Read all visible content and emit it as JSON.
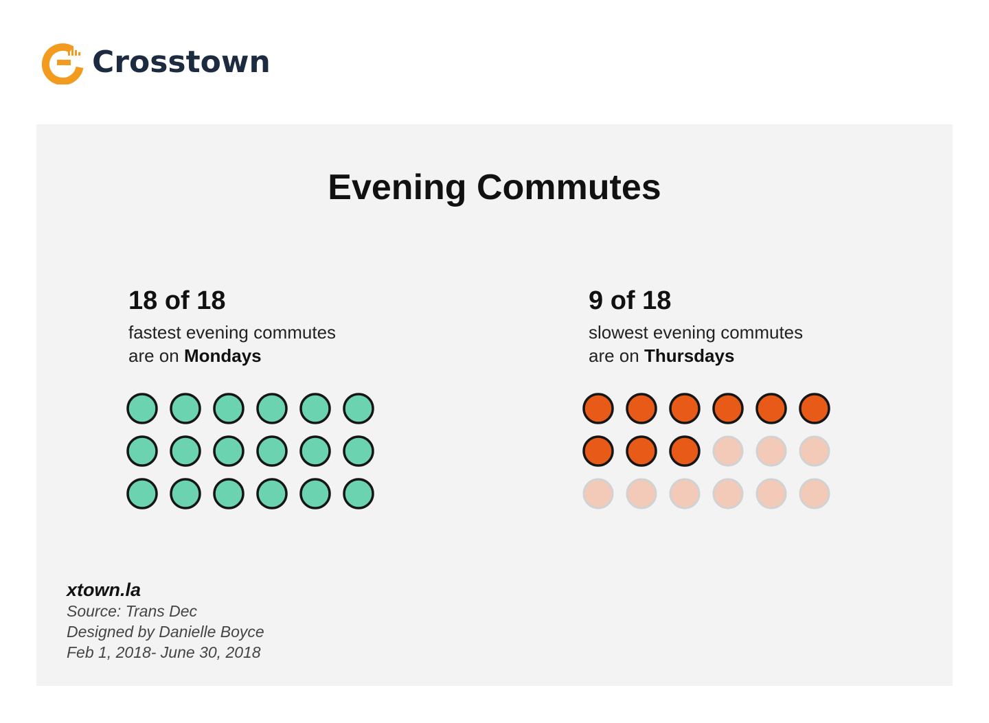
{
  "brand": {
    "name": "Crosstown",
    "logo_icon": "crosstown-gauge-logo-icon",
    "logo_color": "#f39b1f",
    "text_color": "#1c2b3f"
  },
  "title": "Evening Commutes",
  "panels": [
    {
      "headline": "18 of 18",
      "line1": "fastest evening commutes",
      "line2_prefix": "are on ",
      "line2_bold": "Mondays"
    },
    {
      "headline": "9 of 18",
      "line1": "slowest evening commutes",
      "line2_prefix": "are on ",
      "line2_bold": "Thursdays"
    }
  ],
  "chart_data": [
    {
      "type": "waffle",
      "label": "fastest evening commutes",
      "category": "Mondays",
      "value": 18,
      "total": 18,
      "columns": 6,
      "rows": 3,
      "filled_color": "#6cd3b1",
      "empty_color": "#f3c9b7"
    },
    {
      "type": "waffle",
      "label": "slowest evening commutes",
      "category": "Thursdays",
      "value": 9,
      "total": 18,
      "columns": 6,
      "rows": 3,
      "filled_color": "#e85a17",
      "empty_color": "#f3c9b7"
    }
  ],
  "footer": {
    "site": "xtown.la",
    "source": "Source: Trans Dec",
    "designer": "Designed by Danielle Boyce",
    "date_range": "Feb 1, 2018- June 30, 2018"
  }
}
